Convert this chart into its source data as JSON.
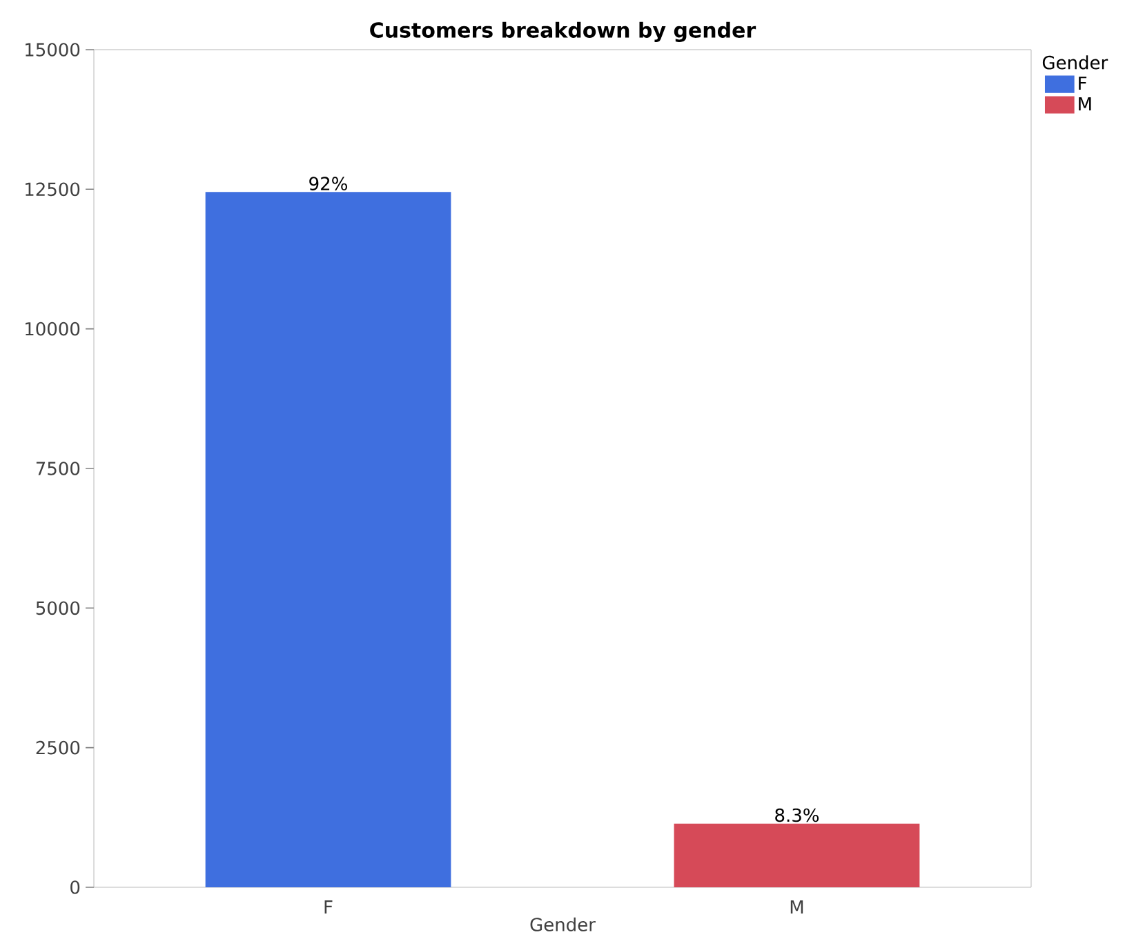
{
  "chart_data": {
    "type": "bar",
    "title": "Customers breakdown by gender",
    "xlabel": "Gender",
    "legend_title": "Gender",
    "categories": [
      "F",
      "M"
    ],
    "series": [
      {
        "name": "F",
        "color": "#3f6fdf",
        "values": [
          12450,
          null
        ]
      },
      {
        "name": "M",
        "color": "#d64a58",
        "values": [
          null,
          1140
        ]
      }
    ],
    "annotations": [
      {
        "text": "92%",
        "x": "F",
        "y": 12450
      },
      {
        "text": "8.3%",
        "x": "M",
        "y": 1140
      }
    ],
    "ylim": [
      0,
      15000
    ],
    "yticks": [
      0,
      2500,
      5000,
      7500,
      10000,
      12500,
      15000
    ],
    "grid": false,
    "legend": "top right"
  }
}
